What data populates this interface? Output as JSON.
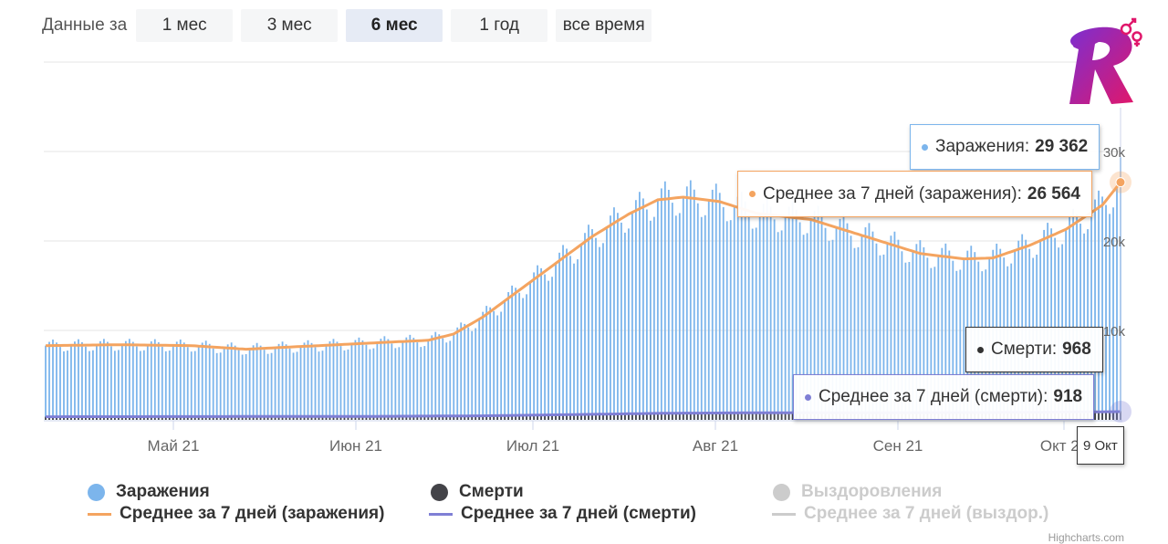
{
  "range_selector": {
    "label": "Данные за",
    "buttons": [
      {
        "label": "1 мес",
        "active": false
      },
      {
        "label": "3 мес",
        "active": false
      },
      {
        "label": "6 мес",
        "active": true
      },
      {
        "label": "1 год",
        "active": false
      },
      {
        "label": "все время",
        "active": false
      }
    ]
  },
  "chart_data": {
    "type": "bar",
    "x_ticks": [
      "Май 21",
      "Июн 21",
      "Июл 21",
      "Авг 21",
      "Сен 21",
      "Окт 21"
    ],
    "y_ticks": [
      "10k",
      "20k",
      "30k"
    ],
    "ylim": [
      0,
      30000
    ],
    "series": [
      {
        "name": "Заражения",
        "type": "column",
        "color": "#7cb5ec"
      },
      {
        "name": "Смерти",
        "type": "column",
        "color": "#434348"
      },
      {
        "name": "Выздоровления",
        "type": "column",
        "color": "#cccccc",
        "hidden": true
      },
      {
        "name": "Среднее за 7 дней (заражения)",
        "type": "line",
        "color": "#f4a460"
      },
      {
        "name": "Среднее за 7 дней (смерти)",
        "type": "line",
        "color": "#7f7fd5"
      },
      {
        "name": "Среднее за 7 дней (выздор.)",
        "type": "line",
        "color": "#cccccc",
        "hidden": true
      }
    ],
    "avg_cases_profile": [
      [
        0,
        8300
      ],
      [
        20,
        8400
      ],
      [
        40,
        8300
      ],
      [
        55,
        7900
      ],
      [
        70,
        8200
      ],
      [
        90,
        8600
      ],
      [
        105,
        8900
      ],
      [
        112,
        9600
      ],
      [
        120,
        11500
      ],
      [
        130,
        14500
      ],
      [
        140,
        17500
      ],
      [
        150,
        20500
      ],
      [
        160,
        23000
      ],
      [
        168,
        24600
      ],
      [
        175,
        24900
      ],
      [
        185,
        24400
      ],
      [
        195,
        23100
      ],
      [
        210,
        22400
      ],
      [
        225,
        20500
      ],
      [
        240,
        18600
      ],
      [
        252,
        18000
      ],
      [
        260,
        18100
      ],
      [
        270,
        19500
      ],
      [
        280,
        21300
      ],
      [
        290,
        24000
      ],
      [
        295,
        26564
      ]
    ],
    "avg_deaths_profile": [
      [
        0,
        350
      ],
      [
        90,
        390
      ],
      [
        120,
        450
      ],
      [
        150,
        620
      ],
      [
        170,
        740
      ],
      [
        200,
        800
      ],
      [
        240,
        810
      ],
      [
        270,
        840
      ],
      [
        295,
        918
      ]
    ],
    "tooltip": {
      "date": "9 Окт",
      "items": [
        {
          "label": "Заражения:",
          "value": "29 362",
          "color": "#7cb5ec"
        },
        {
          "label": "Среднее за 7 дней (заражения):",
          "value": "26 564",
          "color": "#f4a460"
        },
        {
          "label": "Смерти:",
          "value": "968",
          "color": "#434348"
        },
        {
          "label": "Среднее за 7 дней (смерти):",
          "value": "918",
          "color": "#7f7fd5"
        }
      ]
    }
  },
  "legend": [
    {
      "label": "Заражения",
      "color": "#7cb5ec",
      "kind": "dot",
      "dim": false
    },
    {
      "label": "Смерти",
      "color": "#434348",
      "kind": "dot",
      "dim": false
    },
    {
      "label": "Выздоровления",
      "color": "#cccccc",
      "kind": "dot",
      "dim": true
    },
    {
      "label": "Среднее за 7 дней (заражения)",
      "color": "#f4a460",
      "kind": "line",
      "dim": false
    },
    {
      "label": "Среднее за 7 дней (смерти)",
      "color": "#7f7fd5",
      "kind": "line",
      "dim": false
    },
    {
      "label": "Среднее за 7 дней (выздор.)",
      "color": "#cccccc",
      "kind": "line",
      "dim": true
    }
  ],
  "credits": "Highcharts.com"
}
